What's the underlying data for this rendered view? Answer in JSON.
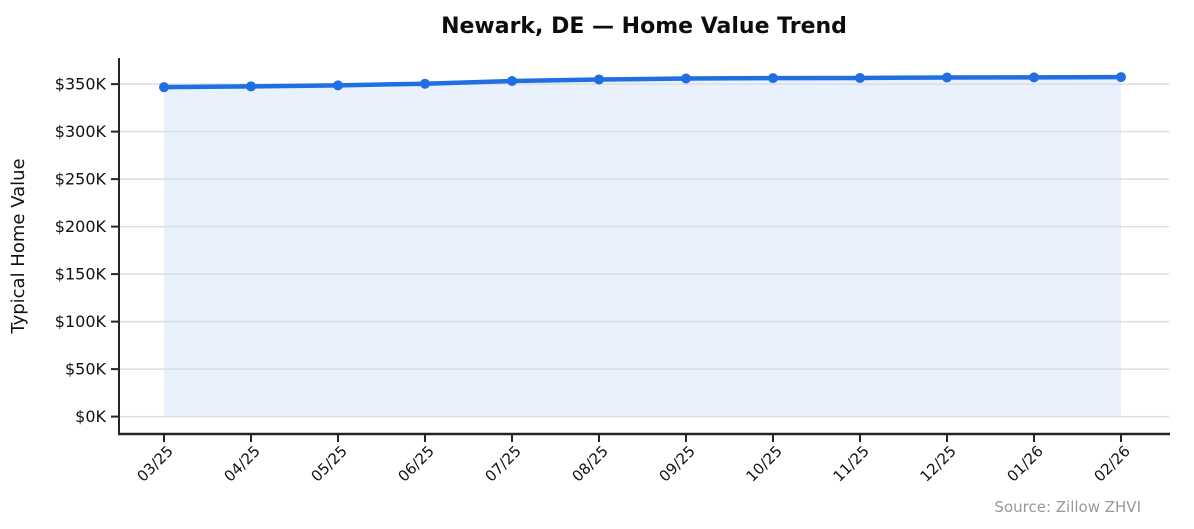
{
  "chart_data": {
    "type": "line",
    "title": "Newark, DE — Home Value Trend",
    "ylabel": "Typical Home Value",
    "xlabel": "",
    "source_note": "Source: Zillow ZHVI",
    "categories": [
      "03/25",
      "04/25",
      "05/25",
      "06/25",
      "07/25",
      "08/25",
      "09/25",
      "10/25",
      "11/25",
      "12/25",
      "01/26",
      "02/26"
    ],
    "values": [
      346800,
      347600,
      348700,
      350400,
      353300,
      354900,
      355900,
      356300,
      356500,
      357000,
      357100,
      357400
    ],
    "ylim": [
      0,
      377500
    ],
    "ytick_step": 50000,
    "ytick_labels": [
      "$0K",
      "$50K",
      "$100K",
      "$150K",
      "$200K",
      "$250K",
      "$300K",
      "$350K"
    ],
    "grid": "horizontal",
    "legend_position": "none",
    "marker": "circle",
    "area_fill": true,
    "colors": {
      "line": "#1f6fe2",
      "fill": "#e9f1fc",
      "grid": "#dcdee2",
      "axis": "#262626",
      "text": "#111111",
      "source_text": "#999999"
    }
  }
}
